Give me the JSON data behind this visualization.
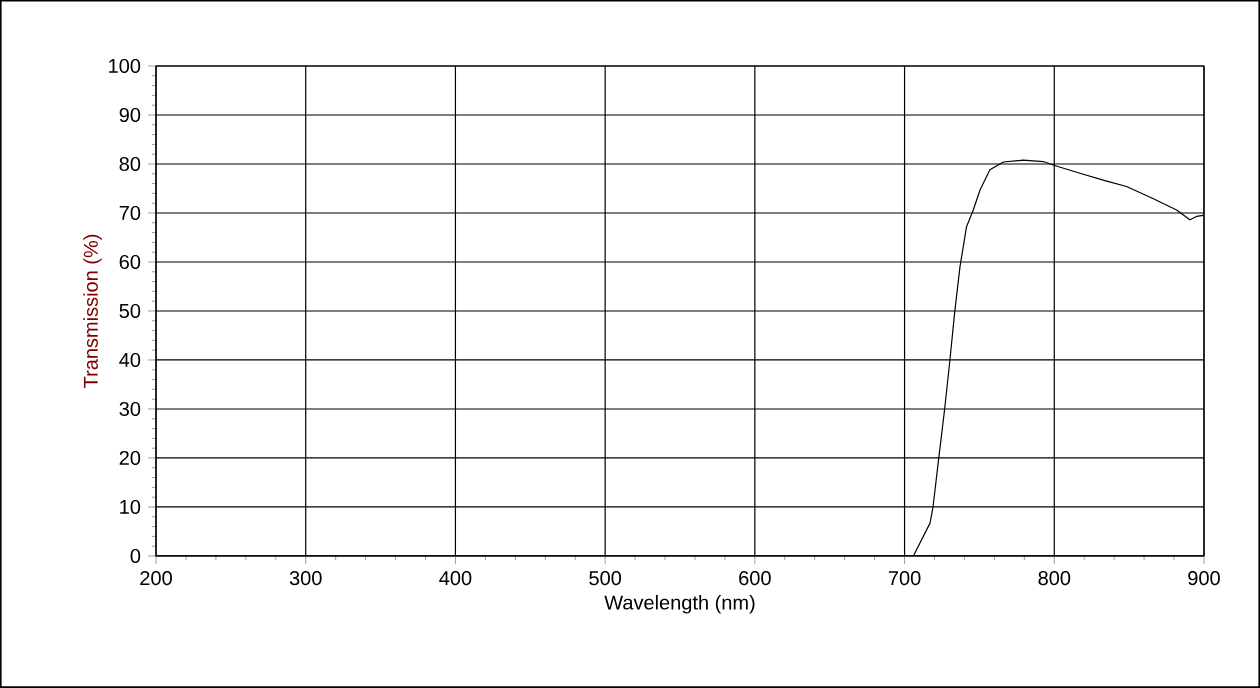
{
  "chart_data": {
    "type": "line",
    "xlabel": "Wavelength (nm)",
    "ylabel": "Transmission (%)",
    "x": [
      705.9,
      717,
      719,
      722.7,
      726.7,
      730.3,
      733.4,
      737,
      741.4,
      745.9,
      750.4,
      757,
      766,
      779.3,
      792.7,
      800.2,
      817.1,
      835,
      848.3,
      866.2,
      881.7,
      890.6,
      895,
      899.5
    ],
    "series": [
      {
        "color": "#000000",
        "values": [
          0,
          6.7,
          10,
          19.6,
          29.8,
          40,
          49.5,
          59,
          67.2,
          70.6,
          74.7,
          78.8,
          80.4,
          80.8,
          80.5,
          79.7,
          78.1,
          76.5,
          75.4,
          72.9,
          70.6,
          68.6,
          69.3,
          69.5
        ]
      }
    ],
    "xlim": [
      200,
      900
    ],
    "xticks": [
      200,
      300,
      400,
      500,
      600,
      700,
      800,
      900
    ],
    "ylim": [
      0,
      100
    ],
    "yticks": [
      0,
      10,
      20,
      30,
      40,
      50,
      60,
      70,
      80,
      90,
      100
    ],
    "grid": true,
    "marker": "none",
    "line_style": "solid"
  }
}
